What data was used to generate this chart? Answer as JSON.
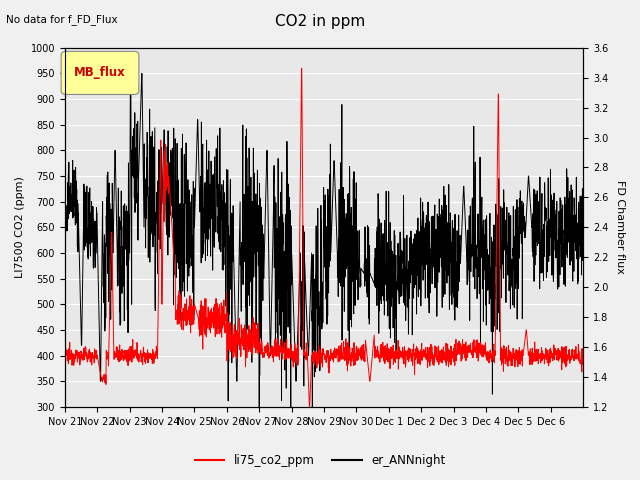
{
  "title": "CO2 in ppm",
  "subtitle": "No data for f_FD_Flux",
  "ylabel_left": "LI7500 CO2 (ppm)",
  "ylabel_right": "FD Chamber flux",
  "ylim_left": [
    300,
    1000
  ],
  "ylim_right": [
    1.2,
    3.6
  ],
  "yticks_left": [
    300,
    350,
    400,
    450,
    500,
    550,
    600,
    650,
    700,
    750,
    800,
    850,
    900,
    950,
    1000
  ],
  "yticks_right": [
    1.2,
    1.4,
    1.6,
    1.8,
    2.0,
    2.2,
    2.4,
    2.6,
    2.8,
    3.0,
    3.2,
    3.4,
    3.6
  ],
  "line1_color": "#FF0000",
  "line1_label": "li75_co2_ppm",
  "line2_color": "#000000",
  "line2_label": "er_ANNnight",
  "background_color": "#E8E8E8",
  "plot_bg_color": "#E8E8E8",
  "legend_box_color": "#FFFF99",
  "legend_box_text": "MB_flux",
  "legend_box_text_color": "#CC0000",
  "grid_color": "#FFFFFF",
  "title_fontsize": 11,
  "label_fontsize": 8,
  "tick_fontsize": 7,
  "n_points": 2304,
  "xtick_labels": [
    "Nov 21",
    "Nov 22",
    "Nov 23",
    "Nov 24",
    "Nov 25",
    "Nov 26",
    "Nov 27",
    "Nov 28",
    "Nov 29",
    "Nov 30",
    "Dec 1",
    "Dec 2",
    "Dec 3",
    "Dec 4",
    "Dec 5",
    "Dec 6"
  ]
}
